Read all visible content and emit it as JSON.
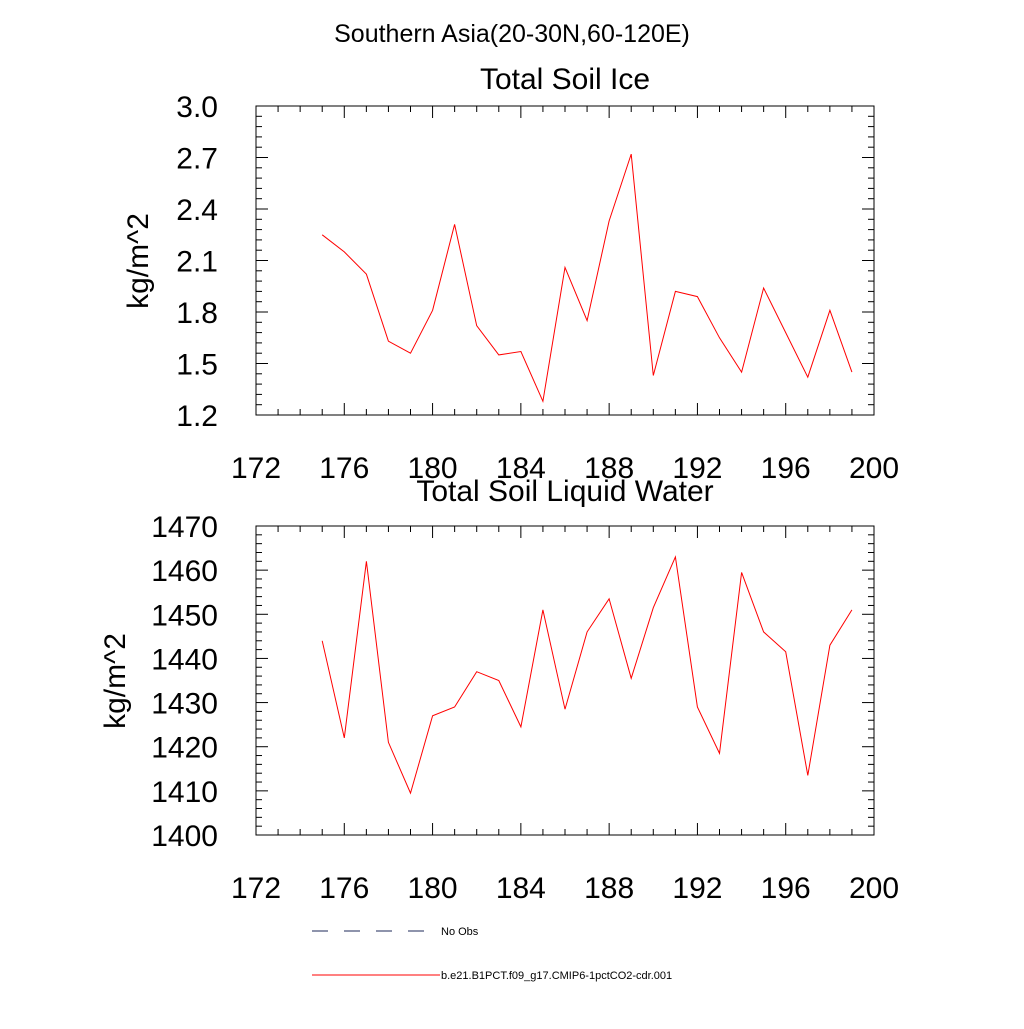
{
  "page_title": "Southern Asia(20-30N,60-120E)",
  "colors": {
    "series": "#ff0000",
    "obs": "#1e2a5a",
    "axis": "#000000"
  },
  "chart_data": [
    {
      "type": "line",
      "title": "Total Soil Ice",
      "xlabel": "",
      "ylabel": "kg/m^2",
      "xlim": [
        172,
        200
      ],
      "ylim": [
        1.2,
        3.0
      ],
      "xticks": [
        172,
        176,
        180,
        184,
        188,
        192,
        196,
        200
      ],
      "yticks": [
        "1.2",
        "1.5",
        "1.8",
        "2.1",
        "2.4",
        "2.7",
        "3.0"
      ],
      "grid": false,
      "series": [
        {
          "name": "b.e21.B1PCT.f09_g17.CMIP6-1pctCO2-cdr.001",
          "x": [
            175,
            176,
            177,
            178,
            179,
            180,
            181,
            182,
            183,
            184,
            185,
            186,
            187,
            188,
            189,
            190,
            191,
            192,
            193,
            194,
            195,
            196,
            197,
            198,
            199
          ],
          "values": [
            2.25,
            2.15,
            2.02,
            1.63,
            1.56,
            1.81,
            2.31,
            1.72,
            1.55,
            1.57,
            1.28,
            2.06,
            1.75,
            2.33,
            2.72,
            1.43,
            1.92,
            1.89,
            1.65,
            1.45,
            1.94,
            1.68,
            1.42,
            1.81,
            1.45
          ]
        }
      ]
    },
    {
      "type": "line",
      "title": "Total Soil Liquid Water",
      "xlabel": "",
      "ylabel": "kg/m^2",
      "xlim": [
        172,
        200
      ],
      "ylim": [
        1400,
        1470
      ],
      "xticks": [
        172,
        176,
        180,
        184,
        188,
        192,
        196,
        200
      ],
      "yticks": [
        "1400",
        "1410",
        "1420",
        "1430",
        "1440",
        "1450",
        "1460",
        "1470"
      ],
      "grid": false,
      "series": [
        {
          "name": "b.e21.B1PCT.f09_g17.CMIP6-1pctCO2-cdr.001",
          "x": [
            175,
            176,
            177,
            178,
            179,
            180,
            181,
            182,
            183,
            184,
            185,
            186,
            187,
            188,
            189,
            190,
            191,
            192,
            193,
            194,
            195,
            196,
            197,
            198,
            199
          ],
          "values": [
            1444,
            1422,
            1462,
            1421,
            1409.5,
            1427,
            1429,
            1437,
            1435,
            1424.5,
            1451,
            1428.5,
            1446,
            1453.5,
            1435.5,
            1451.5,
            1463,
            1429,
            1418.5,
            1459.5,
            1446,
            1441.5,
            1413.5,
            1443,
            1451
          ]
        }
      ]
    }
  ],
  "legend": [
    {
      "label": "No Obs",
      "style": "dashed",
      "color_key": "obs"
    },
    {
      "label": "b.e21.B1PCT.f09_g17.CMIP6-1pctCO2-cdr.001",
      "style": "solid",
      "color_key": "series"
    }
  ]
}
